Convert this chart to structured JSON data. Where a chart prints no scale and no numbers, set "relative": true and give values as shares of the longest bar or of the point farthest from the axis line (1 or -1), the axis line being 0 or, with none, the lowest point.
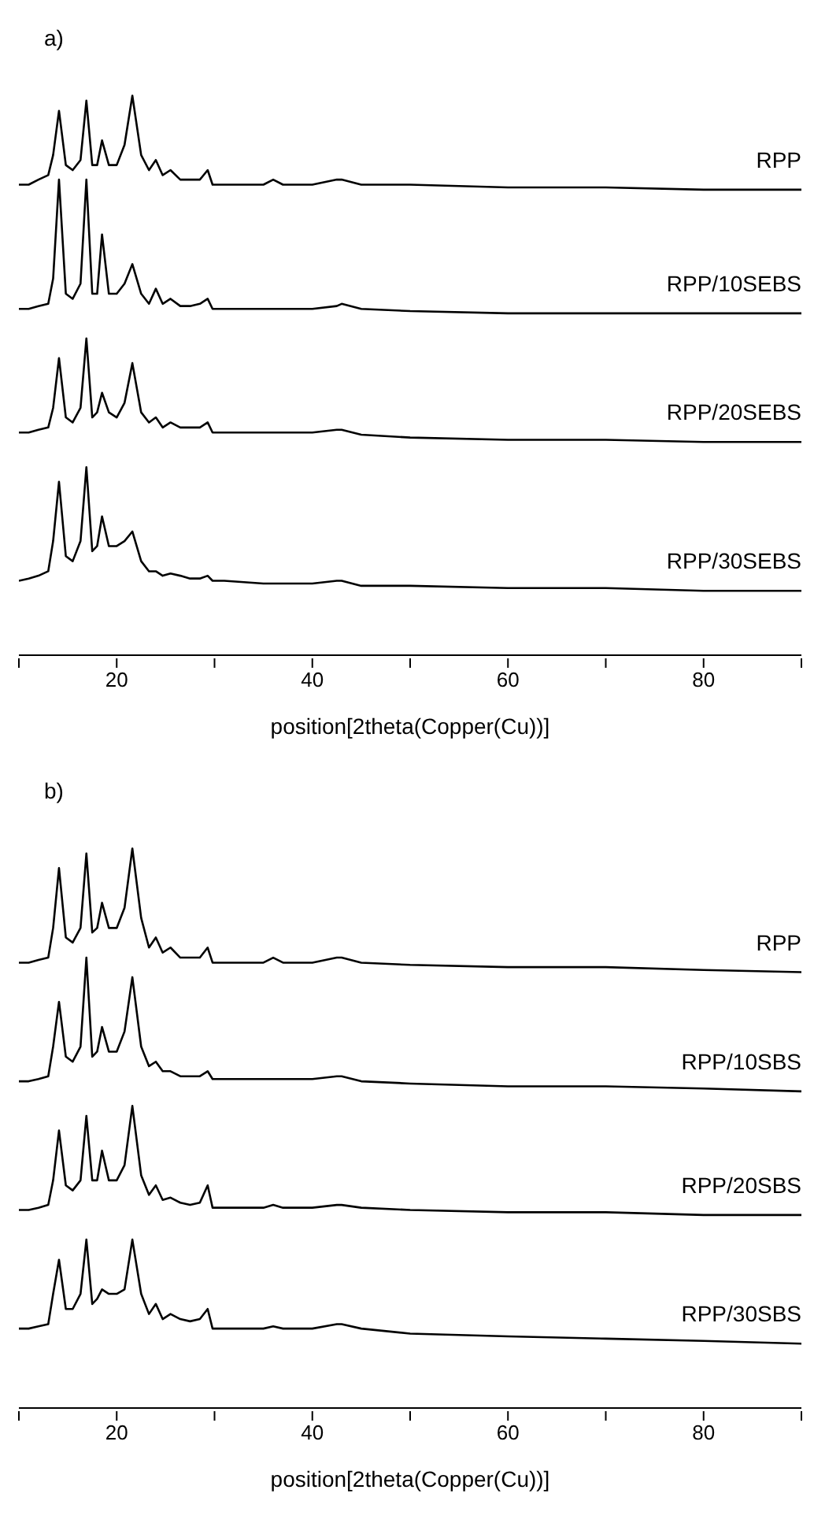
{
  "chart_data": [
    {
      "type": "line",
      "title": "a)",
      "xlabel": "position[2theta(Copper(Cu))]",
      "relative": true,
      "tick_labels": "x",
      "marker": "none",
      "xlim": [
        10,
        90
      ],
      "xticks": [
        {
          "value": 10,
          "label": null
        },
        20,
        {
          "value": 30,
          "label": null
        },
        40,
        {
          "value": 50,
          "label": null
        },
        60,
        {
          "value": 70,
          "label": null
        },
        80,
        {
          "value": 90,
          "label": null
        }
      ],
      "x": [
        10,
        11,
        12,
        13,
        13.5,
        14.1,
        14.8,
        15.5,
        16.3,
        16.9,
        17.5,
        18,
        18.5,
        19.2,
        20,
        20.8,
        21.6,
        22.5,
        23.3,
        24,
        24.7,
        25.5,
        26.5,
        27.5,
        28.5,
        29.3,
        29.8,
        31,
        35,
        36,
        37,
        40,
        42.5,
        43,
        45,
        50,
        60,
        70,
        80,
        90
      ],
      "series": [
        {
          "name": "RPP",
          "color": "#000000",
          "values": [
            0.841,
            0.841,
            0.85,
            0.858,
            0.894,
            0.973,
            0.876,
            0.867,
            0.885,
            0.991,
            0.876,
            0.876,
            0.92,
            0.876,
            0.876,
            0.912,
            1.0,
            0.894,
            0.867,
            0.885,
            0.858,
            0.867,
            0.85,
            0.85,
            0.85,
            0.867,
            0.841,
            0.841,
            0.841,
            0.85,
            0.841,
            0.841,
            0.85,
            0.85,
            0.841,
            0.841,
            0.836,
            0.836,
            0.832,
            0.832
          ]
        },
        {
          "name": "RPP/10SEBS",
          "color": "#000000",
          "values": [
            0.619,
            0.619,
            0.624,
            0.628,
            0.673,
            0.85,
            0.646,
            0.637,
            0.664,
            0.85,
            0.646,
            0.646,
            0.752,
            0.646,
            0.646,
            0.664,
            0.699,
            0.646,
            0.628,
            0.655,
            0.628,
            0.637,
            0.624,
            0.624,
            0.628,
            0.637,
            0.619,
            0.619,
            0.619,
            0.619,
            0.619,
            0.619,
            0.624,
            0.628,
            0.619,
            0.615,
            0.611,
            0.611,
            0.611,
            0.611
          ]
        },
        {
          "name": "RPP/20SEBS",
          "color": "#000000",
          "values": [
            0.398,
            0.398,
            0.403,
            0.407,
            0.442,
            0.531,
            0.425,
            0.416,
            0.442,
            0.566,
            0.425,
            0.434,
            0.469,
            0.434,
            0.425,
            0.451,
            0.522,
            0.434,
            0.416,
            0.425,
            0.407,
            0.416,
            0.407,
            0.407,
            0.407,
            0.416,
            0.398,
            0.398,
            0.398,
            0.398,
            0.398,
            0.398,
            0.403,
            0.403,
            0.394,
            0.389,
            0.385,
            0.385,
            0.381,
            0.381
          ]
        },
        {
          "name": "RPP/30SEBS",
          "color": "#000000",
          "values": [
            0.133,
            0.137,
            0.142,
            0.15,
            0.204,
            0.31,
            0.177,
            0.168,
            0.204,
            0.336,
            0.186,
            0.195,
            0.248,
            0.195,
            0.195,
            0.204,
            0.221,
            0.168,
            0.15,
            0.15,
            0.142,
            0.146,
            0.142,
            0.137,
            0.137,
            0.142,
            0.133,
            0.133,
            0.128,
            0.128,
            0.128,
            0.128,
            0.133,
            0.133,
            0.124,
            0.124,
            0.12,
            0.12,
            0.115,
            0.115
          ]
        }
      ]
    },
    {
      "type": "line",
      "title": "b)",
      "xlabel": "position[2theta(Copper(Cu))]",
      "relative": true,
      "tick_labels": "x",
      "marker": "none",
      "xlim": [
        10,
        90
      ],
      "xticks": [
        {
          "value": 10,
          "label": null
        },
        20,
        {
          "value": 30,
          "label": null
        },
        40,
        {
          "value": 50,
          "label": null
        },
        60,
        {
          "value": 70,
          "label": null
        },
        80,
        {
          "value": 90,
          "label": null
        }
      ],
      "x": [
        10,
        11,
        12,
        13,
        13.5,
        14.1,
        14.8,
        15.5,
        16.3,
        16.9,
        17.5,
        18,
        18.5,
        19.2,
        20,
        20.8,
        21.6,
        22.5,
        23.3,
        24,
        24.7,
        25.5,
        26.5,
        27.5,
        28.5,
        29.3,
        29.8,
        31,
        35,
        36,
        37,
        40,
        42.5,
        43,
        45,
        50,
        60,
        70,
        80,
        90
      ],
      "series": [
        {
          "name": "RPP",
          "color": "#000000",
          "values": [
            0.796,
            0.796,
            0.801,
            0.805,
            0.858,
            0.965,
            0.841,
            0.832,
            0.858,
            0.991,
            0.85,
            0.858,
            0.903,
            0.858,
            0.858,
            0.894,
            1.0,
            0.876,
            0.823,
            0.841,
            0.814,
            0.823,
            0.805,
            0.805,
            0.805,
            0.823,
            0.796,
            0.796,
            0.796,
            0.805,
            0.796,
            0.796,
            0.805,
            0.805,
            0.796,
            0.792,
            0.788,
            0.788,
            0.783,
            0.779
          ]
        },
        {
          "name": "RPP/10SBS",
          "color": "#000000",
          "values": [
            0.584,
            0.584,
            0.588,
            0.593,
            0.646,
            0.726,
            0.628,
            0.619,
            0.646,
            0.805,
            0.628,
            0.637,
            0.681,
            0.637,
            0.637,
            0.673,
            0.77,
            0.646,
            0.611,
            0.619,
            0.602,
            0.602,
            0.593,
            0.593,
            0.593,
            0.602,
            0.588,
            0.588,
            0.588,
            0.588,
            0.588,
            0.588,
            0.593,
            0.593,
            0.584,
            0.58,
            0.575,
            0.575,
            0.571,
            0.566
          ]
        },
        {
          "name": "RPP/20SBS",
          "color": "#000000",
          "values": [
            0.354,
            0.354,
            0.358,
            0.363,
            0.407,
            0.496,
            0.398,
            0.389,
            0.407,
            0.522,
            0.407,
            0.407,
            0.46,
            0.407,
            0.407,
            0.434,
            0.54,
            0.416,
            0.381,
            0.398,
            0.372,
            0.376,
            0.367,
            0.363,
            0.367,
            0.398,
            0.358,
            0.358,
            0.358,
            0.363,
            0.358,
            0.358,
            0.363,
            0.363,
            0.358,
            0.354,
            0.35,
            0.35,
            0.345,
            0.345
          ]
        },
        {
          "name": "RPP/30SBS",
          "color": "#000000",
          "values": [
            0.142,
            0.142,
            0.146,
            0.15,
            0.204,
            0.265,
            0.177,
            0.177,
            0.204,
            0.301,
            0.186,
            0.195,
            0.212,
            0.204,
            0.204,
            0.212,
            0.301,
            0.204,
            0.168,
            0.186,
            0.159,
            0.168,
            0.159,
            0.155,
            0.159,
            0.177,
            0.142,
            0.142,
            0.142,
            0.146,
            0.142,
            0.142,
            0.15,
            0.15,
            0.142,
            0.133,
            0.128,
            0.124,
            0.12,
            0.115
          ]
        }
      ]
    }
  ]
}
